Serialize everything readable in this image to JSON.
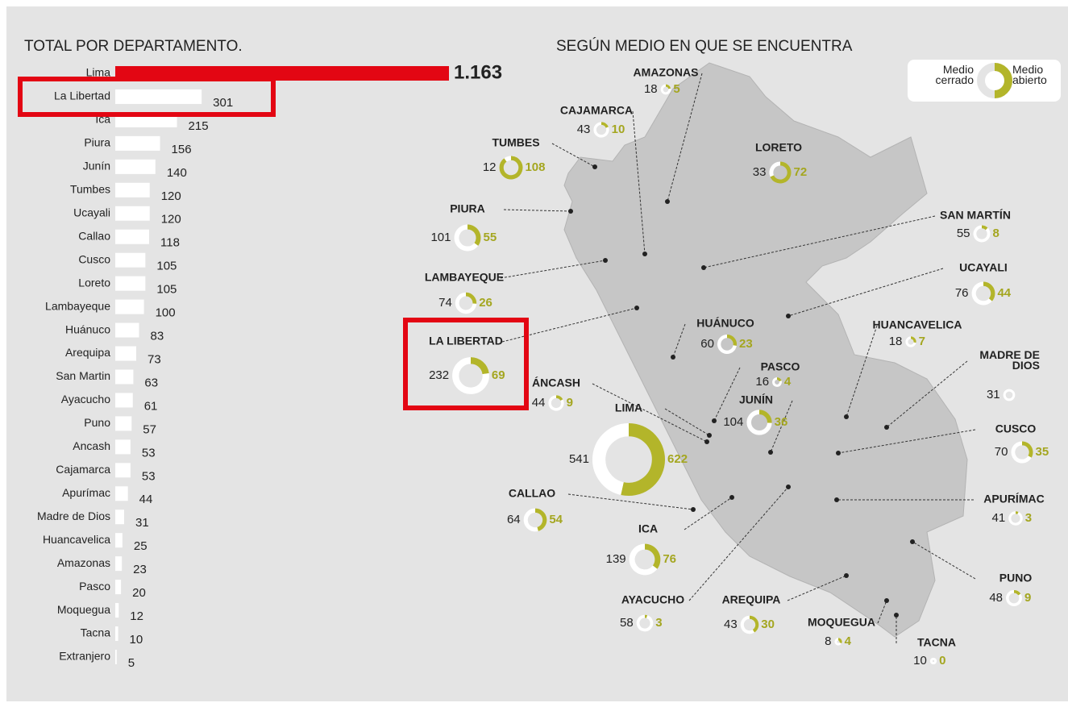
{
  "chart_data": [
    {
      "type": "hbar",
      "title": "TOTAL  POR DEPARTAMENTO.",
      "categories": [
        "Lima",
        "La Libertad",
        "Ica",
        "Piura",
        "Junín",
        "Tumbes",
        "Ucayali",
        "Callao",
        "Cusco",
        "Loreto",
        "Lambayeque",
        "Huánuco",
        "Arequipa",
        "San Martin",
        "Ayacucho",
        "Puno",
        "Ancash",
        "Cajamarca",
        "Apurímac",
        "Madre de Dios",
        "Huancavelica",
        "Amazonas",
        "Pasco",
        "Moquegua",
        "Tacna",
        "Extranjero"
      ],
      "values": [
        1163,
        301,
        215,
        156,
        140,
        120,
        120,
        118,
        105,
        105,
        100,
        83,
        73,
        63,
        61,
        57,
        53,
        53,
        44,
        31,
        25,
        23,
        20,
        12,
        10,
        5
      ],
      "value_labels": [
        "1.163",
        "301",
        "215",
        "156",
        "140",
        "120",
        "120",
        "118",
        "105",
        "105",
        "100",
        "83",
        "73",
        "63",
        "61",
        "57",
        "53",
        "53",
        "44",
        "31",
        "25",
        "23",
        "20",
        "12",
        "10",
        "5"
      ],
      "colors": [
        "#e30613",
        "#ffffff"
      ]
    },
    {
      "type": "donut-map",
      "title": "SEGÚN MEDIO EN QUE SE ENCUENTRA",
      "series": [
        {
          "name": "Medio cerrado",
          "color": "#ffffff"
        },
        {
          "name": "Medio abierto",
          "color": "#b3b52a"
        }
      ],
      "regions": [
        {
          "label": "AMAZONAS",
          "values": [
            18,
            5
          ]
        },
        {
          "label": "CAJAMARCA",
          "values": [
            43,
            10
          ]
        },
        {
          "label": "TUMBES",
          "values": [
            12,
            108
          ]
        },
        {
          "label": "LORETO",
          "values": [
            33,
            72
          ]
        },
        {
          "label": "PIURA",
          "values": [
            101,
            55
          ]
        },
        {
          "label": "SAN MARTÍN",
          "values": [
            55,
            8
          ]
        },
        {
          "label": "LAMBAYEQUE",
          "values": [
            74,
            26
          ]
        },
        {
          "label": "UCAYALI",
          "values": [
            76,
            44
          ]
        },
        {
          "label": "HUÁNUCO",
          "values": [
            60,
            23
          ]
        },
        {
          "label": "HUANCAVELICA",
          "values": [
            18,
            7
          ]
        },
        {
          "label": "LA LIBERTAD",
          "values": [
            232,
            69
          ]
        },
        {
          "label": "MADRE DE DIOS",
          "values": [
            31,
            null
          ]
        },
        {
          "label": "PASCO",
          "values": [
            16,
            4
          ]
        },
        {
          "label": "ÁNCASH",
          "values": [
            44,
            9
          ]
        },
        {
          "label": "JUNÍN",
          "values": [
            104,
            36
          ]
        },
        {
          "label": "CUSCO",
          "values": [
            70,
            35
          ]
        },
        {
          "label": "LIMA",
          "values": [
            541,
            622
          ]
        },
        {
          "label": "CALLAO",
          "values": [
            64,
            54
          ]
        },
        {
          "label": "APURÍMAC",
          "values": [
            41,
            3
          ]
        },
        {
          "label": "ICA",
          "values": [
            139,
            76
          ]
        },
        {
          "label": "AYACUCHO",
          "values": [
            58,
            3
          ]
        },
        {
          "label": "AREQUIPA",
          "values": [
            43,
            30
          ]
        },
        {
          "label": "PUNO",
          "values": [
            48,
            9
          ]
        },
        {
          "label": "MOQUEGUA",
          "values": [
            8,
            4
          ]
        },
        {
          "label": "TACNA",
          "values": [
            10,
            0
          ]
        }
      ]
    }
  ]
}
